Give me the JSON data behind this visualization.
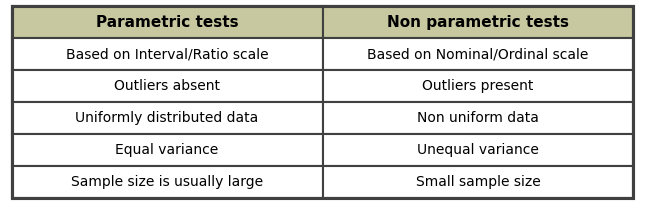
{
  "header": [
    "Parametric tests",
    "Non parametric tests"
  ],
  "rows": [
    [
      "Based on Interval/Ratio scale",
      "Based on Nominal/Ordinal scale"
    ],
    [
      "Outliers absent",
      "Outliers present"
    ],
    [
      "Uniformly distributed data",
      "Non uniform data"
    ],
    [
      "Equal variance",
      "Unequal variance"
    ],
    [
      "Sample size is usually large",
      "Small sample size"
    ]
  ],
  "header_bg_color": "#c8c8a0",
  "row_bg_color": "#ffffff",
  "border_color": "#404040",
  "header_text_color": "#000000",
  "row_text_color": "#000000",
  "header_fontsize": 11,
  "row_fontsize": 10,
  "fig_width": 6.45,
  "fig_height": 2.04,
  "dpi": 100
}
